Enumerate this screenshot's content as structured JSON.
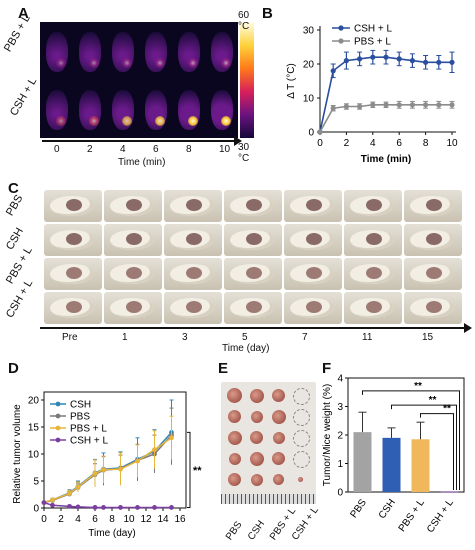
{
  "panels": {
    "a": "A",
    "b": "B",
    "c": "C",
    "d": "D",
    "e": "E",
    "f": "F"
  },
  "panel_a": {
    "row_labels": [
      "PBS + L",
      "CSH + L"
    ],
    "time_ticks": [
      "0",
      "2",
      "4",
      "6",
      "8",
      "10"
    ],
    "xlabel": "Time (min)",
    "colorbar_max": "60 °C",
    "colorbar_min": "30 °C"
  },
  "panel_c": {
    "row_labels": [
      "PBS",
      "CSH",
      "PBS + L",
      "CSH + L"
    ],
    "day_labels": [
      "Pre",
      "1",
      "3",
      "5",
      "7",
      "11",
      "15"
    ],
    "xlabel": "Time (day)"
  },
  "panel_e": {
    "group_labels": [
      "PBS",
      "CSH",
      "PBS + L",
      "CSH + L"
    ]
  },
  "chart_data": [
    {
      "id": "B",
      "type": "line",
      "xlabel": "Time (min)",
      "ylabel": "Δ T (°C)",
      "x": [
        0,
        1,
        2,
        3,
        4,
        5,
        6,
        7,
        8,
        9,
        10
      ],
      "xlim": [
        0,
        10
      ],
      "ylim": [
        0,
        30
      ],
      "xticks": [
        "0",
        "2",
        "4",
        "6",
        "8",
        "10"
      ],
      "yticks": [
        "0",
        "10",
        "20",
        "30"
      ],
      "legend": "top-left",
      "colors": {
        "CSH + L": "#2a4f9e",
        "PBS + L": "#8c8c8c"
      },
      "series": [
        {
          "name": "CSH + L",
          "values": [
            0,
            18,
            21,
            21.5,
            22,
            22,
            21.5,
            21,
            20.5,
            20.5,
            20.5
          ],
          "err": [
            0,
            2,
            2.5,
            2,
            2,
            2,
            2,
            2,
            2,
            2,
            3
          ]
        },
        {
          "name": "PBS + L",
          "values": [
            0,
            7,
            7.5,
            7.5,
            8,
            8,
            8,
            8,
            8,
            8,
            8
          ],
          "err": [
            0,
            0.8,
            0.8,
            0.8,
            0.8,
            0.8,
            1,
            1,
            1,
            1,
            1
          ]
        }
      ]
    },
    {
      "id": "D",
      "type": "line",
      "xlabel": "Time (day)",
      "ylabel": "Relative tumor volume",
      "xticks": [
        "0",
        "2",
        "4",
        "6",
        "8",
        "10",
        "12",
        "14",
        "16"
      ],
      "yticks": [
        "0",
        "5",
        "10",
        "15",
        "20"
      ],
      "xlim": [
        0,
        16
      ],
      "ylim": [
        0,
        20
      ],
      "legend": "top-left",
      "colors": {
        "CSH": "#2f86b8",
        "PBS": "#7a7a7a",
        "PBS + L": "#e8b43a",
        "CSH + L": "#7b3fa0"
      },
      "annotation": "**",
      "series": [
        {
          "name": "CSH",
          "x": [
            0,
            1,
            3,
            4,
            6,
            7,
            9,
            11,
            13,
            15
          ],
          "values": [
            1,
            1.5,
            2.8,
            4,
            6.5,
            7.2,
            7.4,
            9,
            10.5,
            14
          ],
          "err": [
            0,
            0.3,
            0.6,
            1,
            2.5,
            3,
            3,
            4,
            4,
            6
          ]
        },
        {
          "name": "PBS",
          "x": [
            0,
            1,
            3,
            4,
            6,
            7,
            9,
            11,
            13,
            15
          ],
          "values": [
            1,
            1.4,
            2.6,
            3.8,
            6.2,
            7,
            7.3,
            8.8,
            10,
            13.5
          ],
          "err": [
            0,
            0.3,
            0.5,
            0.8,
            2,
            2.5,
            2.5,
            3,
            3.5,
            5
          ]
        },
        {
          "name": "PBS + L",
          "x": [
            0,
            1,
            3,
            4,
            6,
            7,
            9,
            11,
            13,
            15
          ],
          "values": [
            1,
            1.5,
            2.7,
            3.9,
            6.4,
            7.1,
            7.2,
            8.7,
            10.8,
            13
          ],
          "err": [
            0,
            0.3,
            0.6,
            0.9,
            2.5,
            2.5,
            3,
            3,
            3.5,
            4
          ]
        },
        {
          "name": "CSH + L",
          "x": [
            0,
            1,
            3,
            4,
            6,
            7,
            9,
            11,
            13,
            15
          ],
          "values": [
            1,
            0.5,
            0.3,
            0.2,
            0.1,
            0.1,
            0.1,
            0.1,
            0.1,
            0.1
          ],
          "err": [
            0,
            0.1,
            0.1,
            0.1,
            0,
            0,
            0,
            0,
            0,
            0
          ]
        }
      ]
    },
    {
      "id": "F",
      "type": "bar",
      "ylabel": "Tumor/Mice weight (%)",
      "categories": [
        "PBS",
        "CSH",
        "PBS + L",
        "CSH + L"
      ],
      "values": [
        2.1,
        1.9,
        1.85,
        0.02
      ],
      "err": [
        0.7,
        0.35,
        0.6,
        0
      ],
      "yticks": [
        "0",
        "1",
        "2",
        "3",
        "4"
      ],
      "ylim": [
        0,
        4
      ],
      "colors": [
        "#a3a3a3",
        "#2e5fb5",
        "#f0b85a",
        "#7b3fa0"
      ],
      "significance": [
        "**",
        "**",
        "**"
      ]
    }
  ]
}
